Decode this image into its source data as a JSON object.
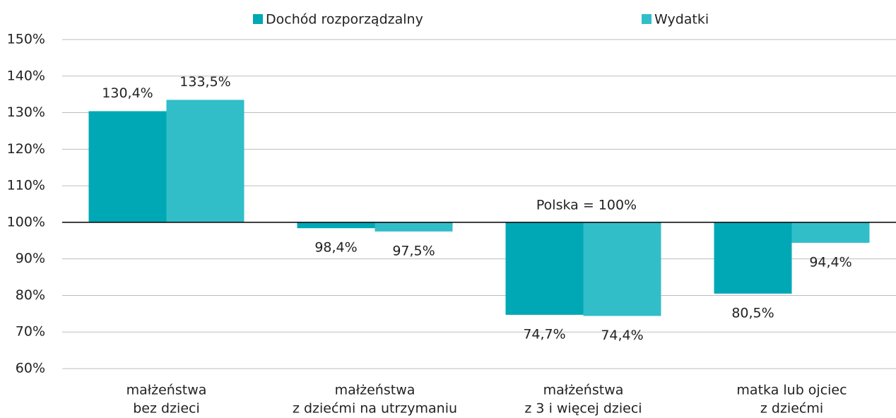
{
  "chart_data": {
    "type": "bar",
    "categories": [
      [
        "małżeństwa",
        "bez dzieci"
      ],
      [
        "małżeństwa",
        "z dziećmi na utrzymaniu"
      ],
      [
        "małżeństwa",
        "z 3 i więcej dzieci"
      ],
      [
        "matka lub ojciec",
        "z dziećmi"
      ]
    ],
    "series": [
      {
        "name": "Dochód rozporządzalny",
        "color": "#00a8b5",
        "values": [
          130.4,
          98.4,
          74.7,
          80.5
        ],
        "value_labels": [
          "130,4%",
          "98,4%",
          "74,7%",
          "80,5%"
        ]
      },
      {
        "name": "Wydatki",
        "color": "#31bec8",
        "values": [
          133.5,
          97.5,
          74.4,
          94.4
        ],
        "value_labels": [
          "133,5%",
          "97,5%",
          "74,4%",
          "94,4%"
        ]
      }
    ],
    "baseline": 100,
    "annotation": "Polska = 100%",
    "ylim": [
      60,
      150
    ],
    "yticks": [
      {
        "value": 60,
        "label": "60%"
      },
      {
        "value": 70,
        "label": "70%"
      },
      {
        "value": 80,
        "label": "80%"
      },
      {
        "value": 90,
        "label": "90%"
      },
      {
        "value": 100,
        "label": "100%"
      },
      {
        "value": 110,
        "label": "110%"
      },
      {
        "value": 120,
        "label": "120%"
      },
      {
        "value": 130,
        "label": "130%"
      },
      {
        "value": 140,
        "label": "140%"
      },
      {
        "value": 150,
        "label": "150%"
      }
    ],
    "grid": true,
    "legend": "top"
  }
}
